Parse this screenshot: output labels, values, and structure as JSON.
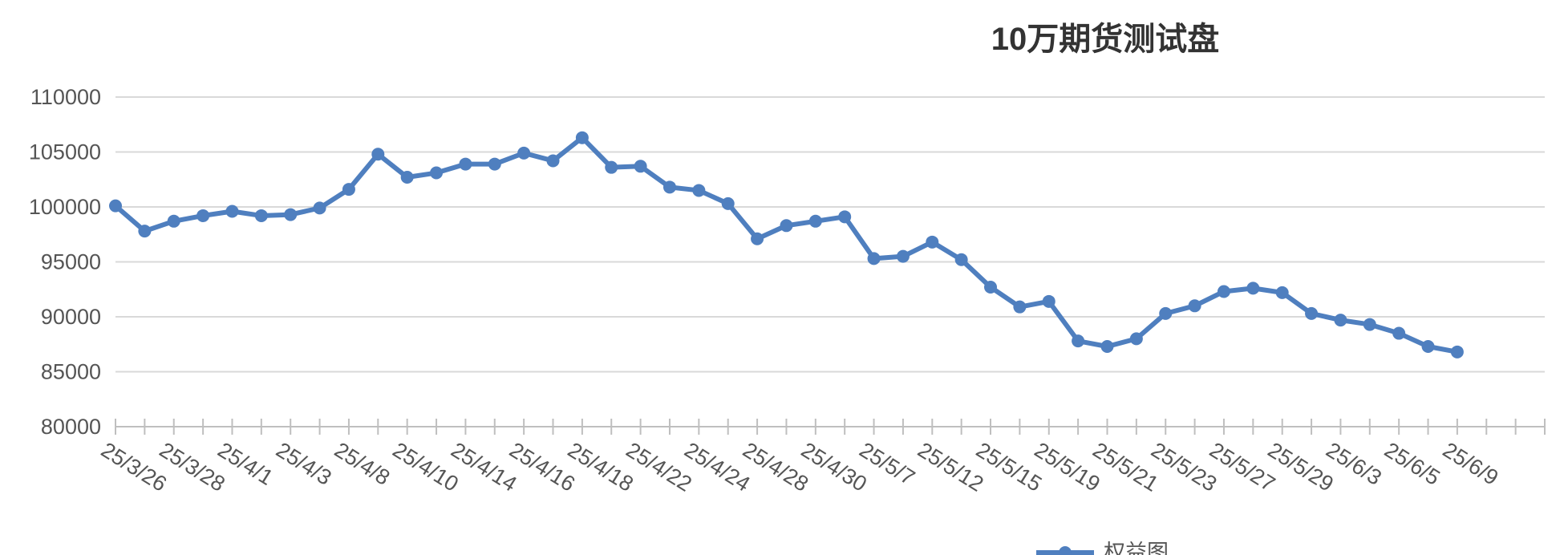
{
  "chart_data": {
    "type": "line",
    "title": "10万期货测试盘",
    "categories": [
      "25/3/26",
      null,
      "25/3/28",
      null,
      "25/4/1",
      null,
      "25/4/3",
      null,
      "25/4/8",
      null,
      "25/4/10",
      null,
      "25/4/14",
      null,
      "25/4/16",
      null,
      "25/4/18",
      null,
      "25/4/22",
      null,
      "25/4/24",
      null,
      "25/4/28",
      null,
      "25/4/30",
      null,
      "25/5/7",
      null,
      "25/5/12",
      null,
      "25/5/15",
      null,
      "25/5/19",
      null,
      "25/5/21",
      null,
      "25/5/23",
      null,
      "25/5/27",
      null,
      "25/5/29",
      null,
      "25/6/3",
      null,
      "25/6/5",
      null,
      "25/6/9",
      null,
      null,
      null
    ],
    "series": [
      {
        "name": "权益图",
        "color": "#4f7fbf",
        "values": [
          100100,
          97800,
          98700,
          99200,
          99600,
          99200,
          99300,
          99900,
          101600,
          104800,
          102700,
          103100,
          103900,
          103900,
          104900,
          104200,
          106300,
          103600,
          103700,
          101800,
          101500,
          100300,
          97100,
          98300,
          98700,
          99100,
          95300,
          95500,
          96800,
          95200,
          92700,
          90900,
          91400,
          87800,
          87300,
          88000,
          90300,
          91000,
          92300,
          92600,
          92200,
          90300,
          89700,
          89300,
          88500,
          87300,
          86800,
          null,
          null,
          null
        ]
      }
    ],
    "ylim": [
      80000,
      110000
    ],
    "yticks": [
      80000,
      85000,
      90000,
      95000,
      100000,
      105000,
      110000
    ],
    "grid": true,
    "legend": "bottom"
  }
}
